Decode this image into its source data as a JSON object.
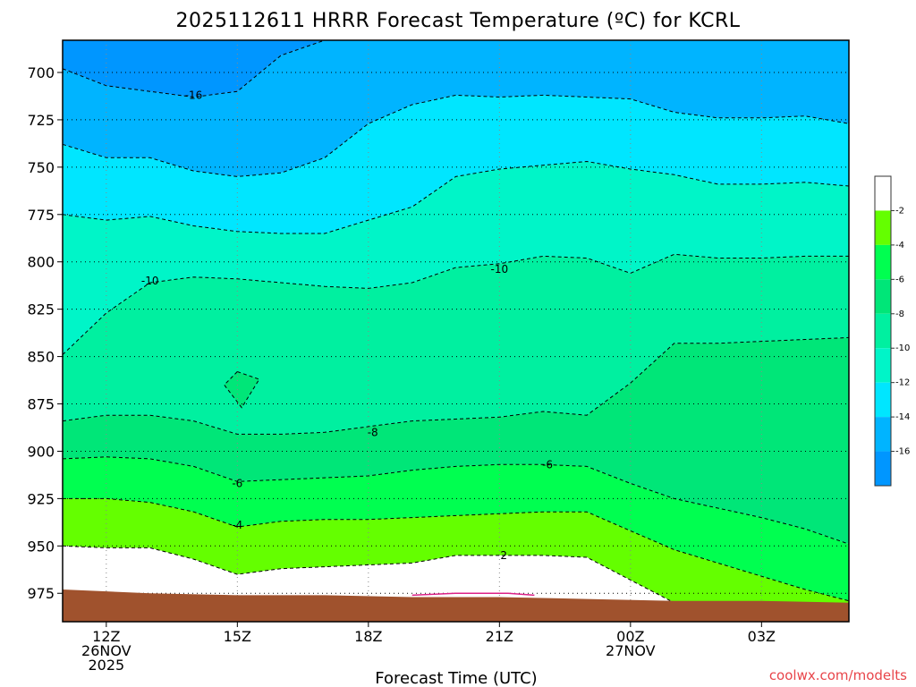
{
  "chart_data": {
    "type": "heatmap",
    "title": "2025112611 HRRR Forecast Temperature (ºC) for KCRL",
    "xlabel": "Forecast Time (UTC)",
    "ylabel": "",
    "watermark": "coolwx.com/modelts",
    "x_axis": {
      "range_hours": [
        11,
        29
      ],
      "ticks": [
        {
          "hour": 12,
          "lines": [
            "12Z",
            "26NOV",
            "2025"
          ]
        },
        {
          "hour": 15,
          "lines": [
            "15Z"
          ]
        },
        {
          "hour": 18,
          "lines": [
            "18Z"
          ]
        },
        {
          "hour": 21,
          "lines": [
            "21Z"
          ]
        },
        {
          "hour": 24,
          "lines": [
            "00Z",
            "27NOV"
          ]
        },
        {
          "hour": 27,
          "lines": [
            "03Z"
          ]
        }
      ]
    },
    "y_axis": {
      "scale": "pressure (hPa, inverted)",
      "range": [
        990,
        683
      ],
      "ticks": [
        700,
        725,
        750,
        775,
        800,
        825,
        850,
        875,
        900,
        925,
        950,
        975
      ]
    },
    "grid": true,
    "legend_position": "right",
    "color_scale": [
      {
        "label": "",
        "color": "#0096ff"
      },
      {
        "label": "-16",
        "color": "#00b4ff"
      },
      {
        "label": "-14",
        "color": "#00e6ff"
      },
      {
        "label": "-12",
        "color": "#00f5c8"
      },
      {
        "label": "-10",
        "color": "#00f0a0"
      },
      {
        "label": "-8",
        "color": "#00e678"
      },
      {
        "label": "-6",
        "color": "#00ff50"
      },
      {
        "label": "-4",
        "color": "#64ff00"
      },
      {
        "label": "-2",
        "color": "#ffffff"
      }
    ],
    "contours": [
      {
        "level": "",
        "points": [
          [
            11,
            698
          ],
          [
            12,
            707
          ],
          [
            13,
            710
          ],
          [
            14,
            713
          ],
          [
            15,
            710
          ],
          [
            16,
            691
          ],
          [
            17,
            683
          ]
        ]
      },
      {
        "level": "",
        "points": [
          [
            11,
            738
          ],
          [
            12,
            745
          ],
          [
            13,
            745
          ],
          [
            14,
            752
          ],
          [
            15,
            755
          ],
          [
            16,
            753
          ],
          [
            17,
            745
          ],
          [
            18,
            727
          ],
          [
            19,
            717
          ],
          [
            20,
            712
          ],
          [
            21,
            713
          ],
          [
            22,
            712
          ],
          [
            23,
            713
          ],
          [
            24,
            714
          ],
          [
            25,
            721
          ],
          [
            26,
            724
          ],
          [
            27,
            724
          ],
          [
            28,
            723
          ],
          [
            29,
            727
          ]
        ]
      },
      {
        "level": "",
        "points": [
          [
            11,
            775
          ],
          [
            12,
            778
          ],
          [
            13,
            776
          ],
          [
            14,
            781
          ],
          [
            15,
            784
          ],
          [
            16,
            785
          ],
          [
            17,
            785
          ],
          [
            18,
            778
          ],
          [
            19,
            771
          ],
          [
            20,
            755
          ],
          [
            21,
            751
          ],
          [
            22,
            749
          ],
          [
            23,
            747
          ],
          [
            24,
            751
          ],
          [
            25,
            754
          ],
          [
            26,
            759
          ],
          [
            27,
            759
          ],
          [
            28,
            758
          ],
          [
            29,
            760
          ]
        ]
      },
      {
        "level": "",
        "points": [
          [
            11,
            849
          ],
          [
            12,
            827
          ],
          [
            13,
            811
          ],
          [
            14,
            808
          ],
          [
            15,
            809
          ],
          [
            16,
            811
          ],
          [
            17,
            813
          ],
          [
            18,
            814
          ],
          [
            19,
            811
          ],
          [
            20,
            803
          ],
          [
            21,
            801
          ],
          [
            22,
            797
          ],
          [
            23,
            798
          ],
          [
            24,
            806
          ],
          [
            25,
            796
          ],
          [
            26,
            798
          ],
          [
            27,
            798
          ],
          [
            28,
            797
          ],
          [
            29,
            797
          ]
        ]
      },
      {
        "level": "",
        "points": [
          [
            15,
            858
          ],
          [
            15.5,
            862
          ],
          [
            15.1,
            877
          ],
          [
            14.7,
            865
          ],
          [
            15,
            858
          ]
        ]
      },
      {
        "level": "",
        "points": [
          [
            11,
            884
          ],
          [
            12,
            881
          ],
          [
            13,
            881
          ],
          [
            14,
            884
          ],
          [
            15,
            891
          ],
          [
            16,
            891
          ],
          [
            17,
            890
          ],
          [
            18,
            887
          ],
          [
            19,
            884
          ],
          [
            20,
            883
          ],
          [
            21,
            882
          ],
          [
            22,
            879
          ],
          [
            23,
            881
          ],
          [
            24,
            864
          ],
          [
            25,
            843
          ],
          [
            26,
            843
          ],
          [
            27,
            842
          ],
          [
            28,
            841
          ],
          [
            29,
            840
          ]
        ]
      },
      {
        "level": "",
        "points": [
          [
            11,
            904
          ],
          [
            12,
            903
          ],
          [
            13,
            904
          ],
          [
            14,
            908
          ],
          [
            15,
            916
          ],
          [
            16,
            915
          ],
          [
            17,
            914
          ],
          [
            18,
            913
          ],
          [
            19,
            910
          ],
          [
            20,
            908
          ],
          [
            21,
            907
          ],
          [
            22,
            907
          ],
          [
            23,
            908
          ],
          [
            24,
            917
          ],
          [
            25,
            925
          ],
          [
            26,
            930
          ],
          [
            27,
            935
          ],
          [
            28,
            941
          ],
          [
            29,
            949
          ]
        ]
      },
      {
        "level": "",
        "points": [
          [
            11,
            925
          ],
          [
            12,
            925
          ],
          [
            13,
            927
          ],
          [
            14,
            932
          ],
          [
            15,
            940
          ],
          [
            16,
            937
          ],
          [
            17,
            936
          ],
          [
            18,
            936
          ],
          [
            19,
            935
          ],
          [
            20,
            934
          ],
          [
            21,
            933
          ],
          [
            22,
            932
          ],
          [
            23,
            932
          ],
          [
            24,
            942
          ],
          [
            25,
            952
          ],
          [
            26,
            959
          ],
          [
            27,
            966
          ],
          [
            28,
            973
          ],
          [
            29,
            979
          ]
        ]
      },
      {
        "level": "",
        "points": [
          [
            11,
            950
          ],
          [
            12,
            951
          ],
          [
            13,
            951
          ],
          [
            14,
            957
          ],
          [
            15,
            965
          ],
          [
            16,
            962
          ],
          [
            17,
            961
          ],
          [
            18,
            960
          ],
          [
            19,
            959
          ],
          [
            20,
            955
          ],
          [
            21,
            955
          ],
          [
            22,
            955
          ],
          [
            23,
            956
          ],
          [
            24,
            968
          ],
          [
            25,
            980
          ],
          [
            26,
            985
          ],
          [
            27,
            988
          ],
          [
            28,
            989
          ],
          [
            29,
            990
          ]
        ]
      }
    ],
    "contour_labels": [
      {
        "text": "-16",
        "x": 14.0,
        "y": 712
      },
      {
        "text": "-10",
        "x": 13.0,
        "y": 810
      },
      {
        "text": "-10",
        "x": 21.0,
        "y": 804
      },
      {
        "text": "-8",
        "x": 18.1,
        "y": 890
      },
      {
        "text": "-6",
        "x": 15.0,
        "y": 917
      },
      {
        "text": "-6",
        "x": 22.1,
        "y": 907
      },
      {
        "text": "-4",
        "x": 15.0,
        "y": 939
      },
      {
        "text": "2",
        "x": 21.1,
        "y": 955
      }
    ],
    "terrain_surface": {
      "color": "#a0522d",
      "points": [
        [
          11,
          973
        ],
        [
          13,
          975
        ],
        [
          15,
          976
        ],
        [
          17,
          976
        ],
        [
          19,
          977
        ],
        [
          21,
          977
        ],
        [
          23,
          978
        ],
        [
          25,
          979
        ],
        [
          27,
          979
        ],
        [
          29,
          980
        ]
      ]
    },
    "magenta_line": {
      "color": "#dd2288",
      "points": [
        [
          19.0,
          976
        ],
        [
          20.0,
          975
        ],
        [
          20.8,
          975
        ],
        [
          21.2,
          975
        ],
        [
          21.8,
          976
        ]
      ]
    }
  }
}
